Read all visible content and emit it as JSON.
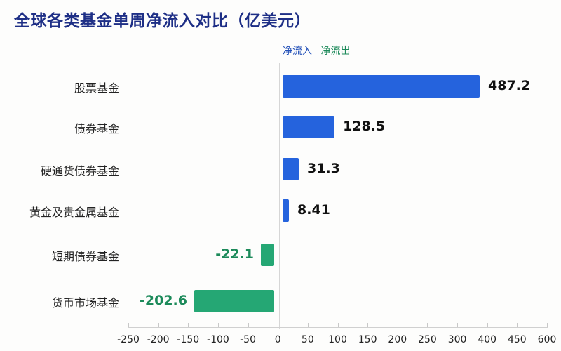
{
  "title": "全球各类基金单周净流入对比（亿美元）",
  "legend": {
    "inflow": "净流入",
    "outflow": "净流出",
    "inflow_color": "#2563dd",
    "outflow_color": "#25a774"
  },
  "chart_data": {
    "type": "bar",
    "orientation": "horizontal",
    "title": "全球各类基金单周净流入对比（亿美元）",
    "xlabel": "",
    "ylabel": "",
    "categories": [
      "股票基金",
      "债券基金",
      "硬通货债券基金",
      "黄金及贵金属基金",
      "短期债券基金",
      "货币市场基金"
    ],
    "values": [
      487.2,
      128.5,
      31.3,
      8.41,
      -22.1,
      -202.6
    ],
    "value_labels": [
      "487.2",
      "128.5",
      "31.3",
      "8.41",
      "-22.1",
      "-202.6"
    ],
    "series": [
      {
        "name": "净流入",
        "values": [
          487.2,
          128.5,
          31.3,
          8.41,
          null,
          null
        ],
        "color": "#2563dd"
      },
      {
        "name": "净流出",
        "values": [
          null,
          null,
          null,
          null,
          -22.1,
          -202.6
        ],
        "color": "#25a774"
      }
    ],
    "x_ticks": [
      "-250",
      "-200",
      "-150",
      "-100",
      "-50",
      "0",
      "50",
      "100",
      "150",
      "200",
      "250",
      "300",
      "400",
      "450",
      "600"
    ],
    "xlim": [
      -250,
      600
    ],
    "grid": false,
    "legend_position": "top-center"
  }
}
